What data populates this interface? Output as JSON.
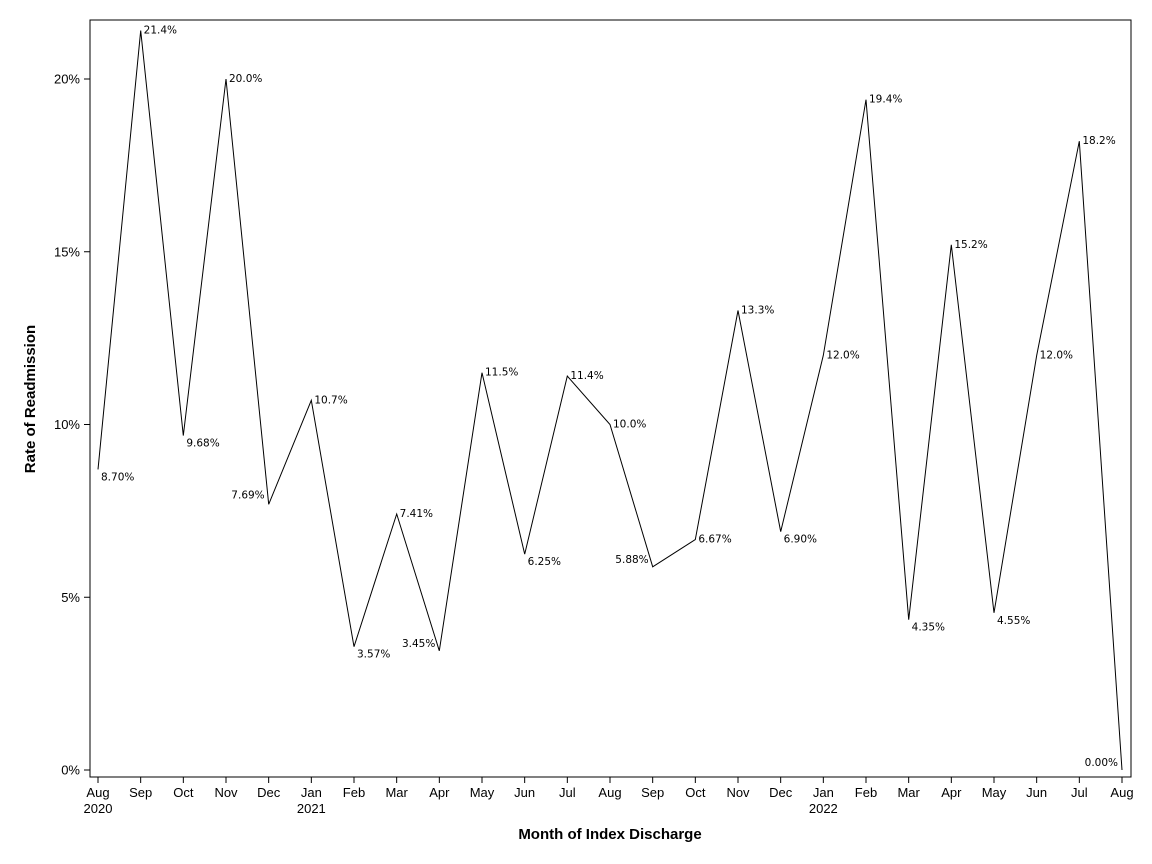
{
  "chart_data": {
    "type": "line",
    "xlabel": "Month of Index Discharge",
    "ylabel": "Rate of Readmission",
    "ylim": [
      0,
      21.4
    ],
    "grid": false,
    "yticks": [
      0,
      5,
      10,
      15,
      20
    ],
    "ytick_labels": [
      "0%",
      "5%",
      "10%",
      "15%",
      "20%"
    ],
    "x_labels": [
      "Aug",
      "Sep",
      "Oct",
      "Nov",
      "Dec",
      "Jan",
      "Feb",
      "Mar",
      "Apr",
      "May",
      "Jun",
      "Jul",
      "Aug",
      "Sep",
      "Oct",
      "Nov",
      "Dec",
      "Jan",
      "Feb",
      "Mar",
      "Apr",
      "May",
      "Jun",
      "Jul",
      "Aug"
    ],
    "year_labels": [
      {
        "index": 0,
        "label": "2020"
      },
      {
        "index": 5,
        "label": "2021"
      },
      {
        "index": 17,
        "label": "2022"
      }
    ],
    "series": [
      {
        "values": [
          8.7,
          21.4,
          9.68,
          20.0,
          7.69,
          10.7,
          3.57,
          7.41,
          3.45,
          11.5,
          6.25,
          11.4,
          10.0,
          5.88,
          6.67,
          13.3,
          6.9,
          12.0,
          19.4,
          4.35,
          15.2,
          4.55,
          12.0,
          18.2,
          0.0
        ],
        "data_labels": [
          "8.70%",
          "21.4%",
          "9.68%",
          "20.0%",
          "7.69%",
          "10.7%",
          "3.57%",
          "7.41%",
          "3.45%",
          "11.5%",
          "6.25%",
          "11.4%",
          "10.0%",
          "5.88%",
          "6.67%",
          "13.3%",
          "6.90%",
          "12.0%",
          "19.4%",
          "4.35%",
          "15.2%",
          "4.55%",
          "12.0%",
          "18.2%",
          "0.00%"
        ]
      }
    ]
  }
}
